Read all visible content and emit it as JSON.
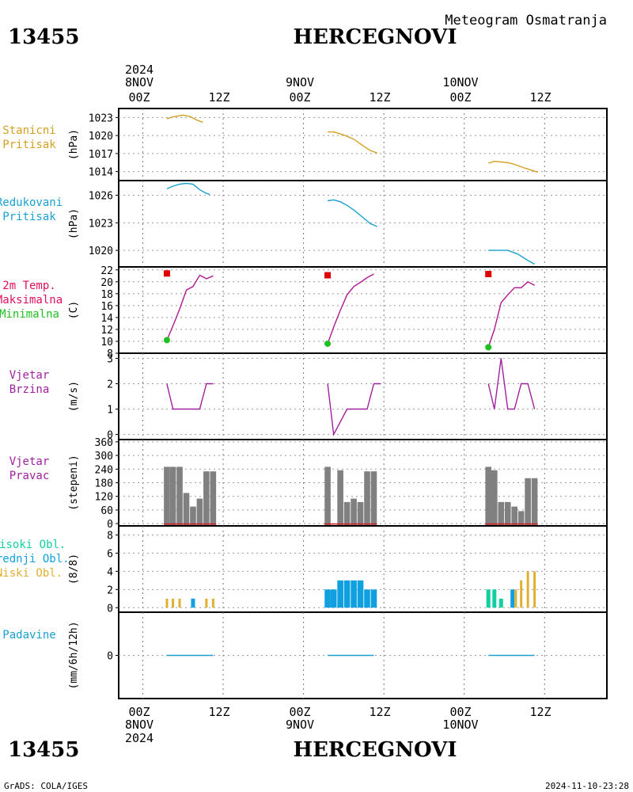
{
  "header": {
    "station_id": "13455",
    "station_name": "HERCEGNOVI",
    "subtitle": "Meteogram Osmatranja"
  },
  "footer": {
    "station_id": "13455",
    "station_name": "HERCEGNOVI",
    "credit": "GrADS: COLA/IGES",
    "timestamp": "2024-11-10-23:28"
  },
  "time_axis": {
    "top_year": "2024",
    "bottom_year": "2024",
    "dates": [
      "8NOV",
      "9NOV",
      "10NOV"
    ],
    "tick_labels": [
      "00Z",
      "12Z",
      "00Z",
      "12Z",
      "00Z",
      "12Z"
    ]
  },
  "colors": {
    "pressure_station": "#d4a020",
    "pressure_reduced": "#1aa0d0",
    "temp_label": "#e0105a",
    "temp_max": "#e00000",
    "temp_min": "#20c020",
    "temp_line": "#b01890",
    "wind": "#a020a0",
    "bars": "#808080",
    "bar_base": "#d02020",
    "cloud_high": "#10d0a0",
    "cloud_mid": "#10a0e0",
    "cloud_low": "#e0b030",
    "precip": "#1aa0d0"
  },
  "chart_data": [
    {
      "id": "p1",
      "type": "line",
      "labels": [
        "Stanicni",
        "Pritisak"
      ],
      "ylabel": "(hPa)",
      "ylim": [
        1012.5,
        1024.5
      ],
      "yticks": [
        1014,
        1017,
        1020,
        1023
      ],
      "series": [
        {
          "color": "#d4a020",
          "segments": [
            [
              [
                3.6,
                1022.8
              ],
              [
                4.5,
                1023.1
              ],
              [
                6,
                1023.4
              ],
              [
                7,
                1023.2
              ],
              [
                8,
                1022.6
              ],
              [
                9,
                1022.2
              ]
            ],
            [
              [
                27.6,
                1020.6
              ],
              [
                28.5,
                1020.6
              ],
              [
                30,
                1020.1
              ],
              [
                31.5,
                1019.4
              ],
              [
                33,
                1018.2
              ],
              [
                34,
                1017.5
              ],
              [
                35,
                1017.1
              ]
            ],
            [
              [
                51.6,
                1015.4
              ],
              [
                52.5,
                1015.7
              ],
              [
                53.5,
                1015.6
              ],
              [
                54.5,
                1015.5
              ],
              [
                55.5,
                1015.2
              ],
              [
                57,
                1014.6
              ],
              [
                59,
                1013.9
              ]
            ]
          ]
        }
      ]
    },
    {
      "id": "p2",
      "type": "line",
      "labels": [
        "Redukovani",
        "Pritisak"
      ],
      "ylabel": "(hPa)",
      "ylim": [
        1018.2,
        1027.6
      ],
      "yticks": [
        1020,
        1023,
        1026
      ],
      "series": [
        {
          "color": "#1aa0d0",
          "segments": [
            [
              [
                3.6,
                1026.7
              ],
              [
                4.5,
                1027.0
              ],
              [
                5.5,
                1027.2
              ],
              [
                6.5,
                1027.3
              ],
              [
                7.5,
                1027.2
              ],
              [
                8.5,
                1026.6
              ],
              [
                9.5,
                1026.2
              ],
              [
                10,
                1026.1
              ]
            ],
            [
              [
                27.6,
                1025.4
              ],
              [
                28.5,
                1025.5
              ],
              [
                29.5,
                1025.3
              ],
              [
                30.5,
                1024.9
              ],
              [
                31.5,
                1024.4
              ],
              [
                33,
                1023.5
              ],
              [
                34,
                1022.9
              ],
              [
                35,
                1022.6
              ]
            ],
            [
              [
                51.6,
                1020.0
              ],
              [
                53,
                1020.0
              ],
              [
                54.5,
                1020.0
              ],
              [
                56,
                1019.6
              ],
              [
                57.5,
                1018.9
              ],
              [
                58.5,
                1018.5
              ]
            ]
          ]
        }
      ]
    },
    {
      "id": "p3",
      "type": "line",
      "labels": [
        "2m Temp.",
        "Maksimalna",
        "Minimalna"
      ],
      "ylabel": "(C)",
      "ylim": [
        8,
        22.5
      ],
      "yticks": [
        8,
        10,
        12,
        14,
        16,
        18,
        20,
        22
      ],
      "series": [
        {
          "color": "#b01890",
          "segments": [
            [
              [
                3.6,
                10.2
              ],
              [
                4.5,
                12.6
              ],
              [
                5.5,
                15.4
              ],
              [
                6.5,
                18.6
              ],
              [
                7.5,
                19.2
              ],
              [
                8.5,
                21.1
              ],
              [
                9.5,
                20.5
              ],
              [
                10.5,
                21
              ]
            ],
            [
              [
                27.6,
                9.6
              ],
              [
                28.5,
                12.4
              ],
              [
                29.5,
                15.2
              ],
              [
                30.5,
                17.8
              ],
              [
                31.5,
                19.2
              ],
              [
                32.5,
                19.9
              ],
              [
                33.5,
                20.7
              ],
              [
                34.5,
                21.3
              ]
            ],
            [
              [
                51.6,
                9.0
              ],
              [
                52.5,
                12
              ],
              [
                53.5,
                16.5
              ],
              [
                54.5,
                17.8
              ],
              [
                55.5,
                19
              ],
              [
                56.5,
                19
              ],
              [
                57.5,
                20
              ],
              [
                58.5,
                19.4
              ]
            ]
          ]
        }
      ],
      "max_points": [
        [
          3.6,
          21.4
        ],
        [
          27.6,
          21.1
        ],
        [
          51.6,
          21.3
        ]
      ],
      "min_points": [
        [
          3.6,
          10.2
        ],
        [
          27.6,
          9.6
        ],
        [
          51.6,
          9.0
        ]
      ]
    },
    {
      "id": "p4",
      "type": "line",
      "labels": [
        "Vjetar",
        "Brzina"
      ],
      "ylabel": "(m/s)",
      "ylim": [
        -0.2,
        3.2
      ],
      "yticks": [
        0,
        1,
        2,
        3
      ],
      "series": [
        {
          "color": "#a020a0",
          "segments": [
            [
              [
                3.6,
                2
              ],
              [
                4.5,
                1
              ],
              [
                6.5,
                1
              ],
              [
                8.5,
                1
              ],
              [
                9.5,
                2
              ],
              [
                10.5,
                2
              ]
            ],
            [
              [
                27.6,
                2
              ],
              [
                28.5,
                0
              ],
              [
                30.5,
                1
              ],
              [
                33.5,
                1
              ],
              [
                34.5,
                2
              ],
              [
                35.5,
                2
              ]
            ],
            [
              [
                51.6,
                2
              ],
              [
                52.5,
                1
              ],
              [
                53.5,
                3
              ],
              [
                54.5,
                1
              ],
              [
                55.5,
                1
              ],
              [
                56.5,
                2
              ],
              [
                57.5,
                2
              ],
              [
                58.5,
                1
              ]
            ]
          ]
        }
      ]
    },
    {
      "id": "p5",
      "type": "bar",
      "labels": [
        "Vjetar",
        "Pravac"
      ],
      "ylabel": "(stepeni)",
      "ylim": [
        -10,
        370
      ],
      "yticks": [
        0,
        60,
        120,
        180,
        240,
        300,
        360
      ],
      "x": [
        3.6,
        4.5,
        5.5,
        6.5,
        7.5,
        8.5,
        9.5,
        10.5,
        27.6,
        28.5,
        29.5,
        30.5,
        31.5,
        32.5,
        33.5,
        34.5,
        51.6,
        52.5,
        53.5,
        54.5,
        55.5,
        56.5,
        57.5,
        58.5
      ],
      "values": [
        250,
        250,
        250,
        135,
        75,
        110,
        230,
        230,
        250,
        0,
        235,
        95,
        110,
        95,
        230,
        230,
        250,
        235,
        95,
        95,
        75,
        55,
        200,
        200
      ]
    },
    {
      "id": "p6",
      "type": "bar",
      "labels": [
        "Visoki Obl.",
        "Srednji Obl.",
        "Niski Obl."
      ],
      "ylabel": "(8/8)",
      "ylim": [
        -0.5,
        9
      ],
      "yticks": [
        0,
        2,
        4,
        6,
        8
      ],
      "bars": [
        {
          "x": 3.6,
          "v": 1,
          "c": "low"
        },
        {
          "x": 4.5,
          "v": 1,
          "c": "low"
        },
        {
          "x": 5.5,
          "v": 1,
          "c": "low"
        },
        {
          "x": 7.5,
          "v": 1,
          "c": "mid"
        },
        {
          "x": 9.5,
          "v": 1,
          "c": "low"
        },
        {
          "x": 10.5,
          "v": 1,
          "c": "low"
        },
        {
          "x": 27.6,
          "v": 2,
          "c": "mid"
        },
        {
          "x": 28.5,
          "v": 2,
          "c": "mid"
        },
        {
          "x": 29.5,
          "v": 3,
          "c": "mid"
        },
        {
          "x": 30.5,
          "v": 3,
          "c": "mid"
        },
        {
          "x": 31.5,
          "v": 3,
          "c": "mid"
        },
        {
          "x": 32.5,
          "v": 3,
          "c": "mid"
        },
        {
          "x": 33.5,
          "v": 2,
          "c": "mid"
        },
        {
          "x": 34.5,
          "v": 2,
          "c": "mid"
        },
        {
          "x": 51.6,
          "v": 2,
          "c": "high"
        },
        {
          "x": 52.5,
          "v": 2,
          "c": "high"
        },
        {
          "x": 53.5,
          "v": 1,
          "c": "high"
        },
        {
          "x": 55.2,
          "v": 2,
          "c": "mid"
        },
        {
          "x": 55.7,
          "v": 2,
          "c": "low"
        },
        {
          "x": 56.5,
          "v": 3,
          "c": "low"
        },
        {
          "x": 57.5,
          "v": 4,
          "c": "low"
        },
        {
          "x": 58.5,
          "v": 4,
          "c": "low"
        }
      ]
    },
    {
      "id": "p7",
      "type": "line",
      "labels": [
        "Padavine"
      ],
      "ylabel": "(mm/6h/12h)",
      "ylim": [
        -1,
        1
      ],
      "yticks": [
        0
      ],
      "series": [
        {
          "color": "#1aa0d0",
          "segments": [
            [
              [
                3.6,
                0
              ],
              [
                10.5,
                0
              ]
            ],
            [
              [
                27.6,
                0
              ],
              [
                34.5,
                0
              ]
            ],
            [
              [
                51.6,
                0
              ],
              [
                58.5,
                0
              ]
            ]
          ]
        }
      ]
    }
  ]
}
